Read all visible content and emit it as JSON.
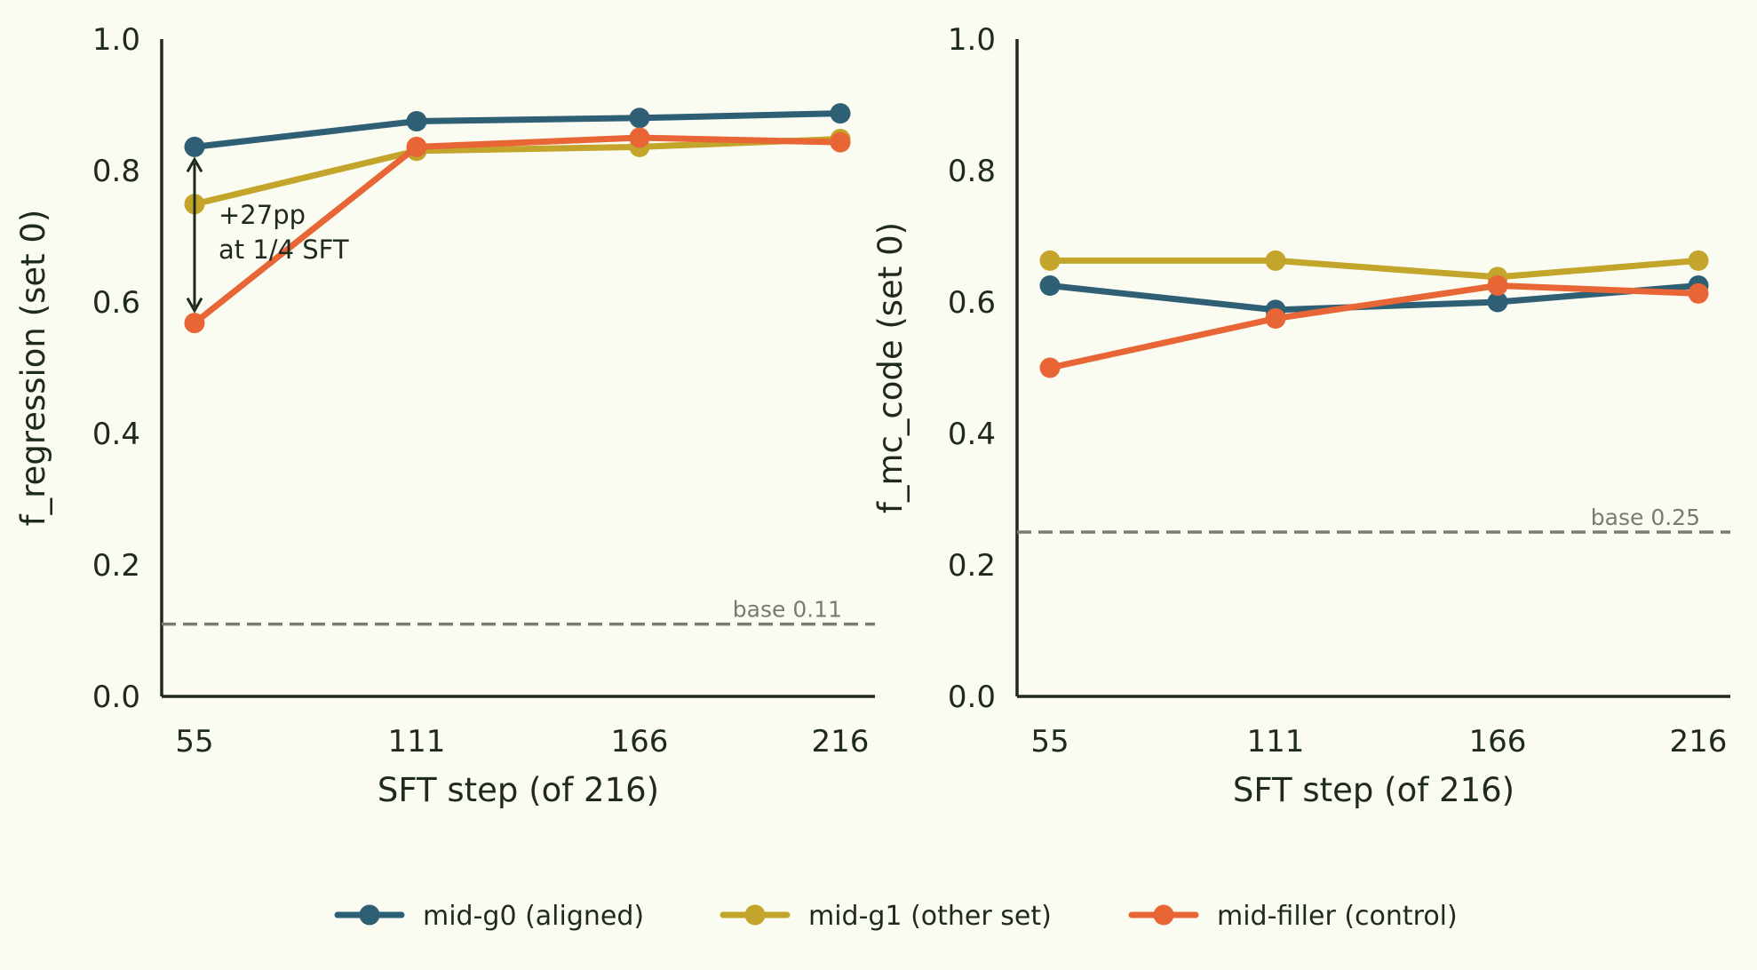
{
  "colors": {
    "background": "#fbfcf1",
    "axis": "#1f2a1f",
    "baseline": "#7a7a72",
    "annotation_arrow": "#1f2a1f"
  },
  "legend": {
    "placement": "bottom-center",
    "entries": [
      {
        "label": "mid-g0 (aligned)",
        "color": "#2f5f74"
      },
      {
        "label": "mid-g1 (other set)",
        "color": "#c2a52a"
      },
      {
        "label": "mid-filler (control)",
        "color": "#e86536"
      }
    ]
  },
  "chart_data": [
    {
      "type": "line",
      "xlabel": "SFT step (of 216)",
      "ylabel": "f_regression (set 0)",
      "categories": [
        "55",
        "111",
        "166",
        "216"
      ],
      "ylim": [
        0,
        1
      ],
      "yticks": [
        "0.0",
        "0.2",
        "0.4",
        "0.6",
        "0.8",
        "1.0"
      ],
      "grid": false,
      "series": [
        {
          "name": "mid-g0 (aligned)",
          "color": "#2f5f74",
          "values": [
            0.836,
            0.875,
            0.88,
            0.887
          ]
        },
        {
          "name": "mid-g1 (other set)",
          "color": "#c2a52a",
          "values": [
            0.749,
            0.83,
            0.836,
            0.848
          ]
        },
        {
          "name": "mid-filler (control)",
          "color": "#e86536",
          "values": [
            0.568,
            0.836,
            0.85,
            0.843
          ]
        }
      ],
      "baseline": {
        "value": 0.11,
        "label": "base 0.11"
      },
      "annotation": {
        "line1": "+27pp",
        "line2": "at 1/4 SFT",
        "x_index": 0,
        "from": 0.568,
        "to": 0.836
      }
    },
    {
      "type": "line",
      "xlabel": "SFT step (of 216)",
      "ylabel": "f_mc_code (set 0)",
      "categories": [
        "55",
        "111",
        "166",
        "216"
      ],
      "ylim": [
        0,
        1
      ],
      "yticks": [
        "0.0",
        "0.2",
        "0.4",
        "0.6",
        "0.8",
        "1.0"
      ],
      "grid": false,
      "series": [
        {
          "name": "mid-g0 (aligned)",
          "color": "#2f5f74",
          "values": [
            0.625,
            0.588,
            0.6,
            0.625
          ]
        },
        {
          "name": "mid-g1 (other set)",
          "color": "#c2a52a",
          "values": [
            0.663,
            0.663,
            0.638,
            0.663
          ]
        },
        {
          "name": "mid-filler (control)",
          "color": "#e86536",
          "values": [
            0.5,
            0.575,
            0.625,
            0.613
          ]
        }
      ],
      "baseline": {
        "value": 0.25,
        "label": "base 0.25"
      }
    }
  ]
}
